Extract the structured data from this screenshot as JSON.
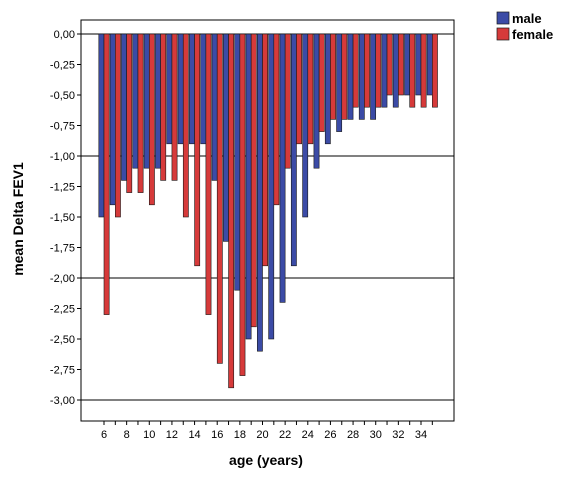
{
  "chart_data": {
    "type": "bar",
    "xlabel": "age (years)",
    "ylabel": "mean Delta FEV1",
    "ylim": [
      -3.25,
      0.08
    ],
    "y_ticks": [
      {
        "value": 0,
        "label": "0,00"
      },
      {
        "value": -0.25,
        "label": "-0,25"
      },
      {
        "value": -0.5,
        "label": "-0,50"
      },
      {
        "value": -0.75,
        "label": "-0,75"
      },
      {
        "value": -1.0,
        "label": "-1,00"
      },
      {
        "value": -1.25,
        "label": "-1,25"
      },
      {
        "value": -1.5,
        "label": "-1,50"
      },
      {
        "value": -1.75,
        "label": "-1,75"
      },
      {
        "value": -2.0,
        "label": "-2,00"
      },
      {
        "value": -2.25,
        "label": "-2,25"
      },
      {
        "value": -2.5,
        "label": "-2,50"
      },
      {
        "value": -2.75,
        "label": "-2,75"
      },
      {
        "value": -3.0,
        "label": "-3,00"
      }
    ],
    "reference_lines": [
      0,
      -1,
      -2,
      -3
    ],
    "x_tick_labels": [
      "6",
      "8",
      "10",
      "12",
      "14",
      "16",
      "18",
      "20",
      "22",
      "24",
      "26",
      "28",
      "30",
      "32",
      "34"
    ],
    "categories": [
      6,
      7,
      8,
      9,
      10,
      11,
      12,
      13,
      14,
      15,
      16,
      17,
      18,
      19,
      20,
      21,
      22,
      23,
      24,
      25,
      26,
      27,
      28,
      29,
      30,
      31,
      32,
      33,
      34,
      35
    ],
    "legend_position": "top-right",
    "series": [
      {
        "name": "male",
        "color": "#3b4ba6",
        "values": [
          -1.5,
          -1.4,
          -1.2,
          -1.1,
          -1.1,
          -1.1,
          -0.9,
          -0.9,
          -0.9,
          -0.9,
          -1.2,
          -1.7,
          -2.1,
          -2.5,
          -2.6,
          -2.5,
          -2.2,
          -1.9,
          -1.5,
          -1.1,
          -0.9,
          -0.8,
          -0.7,
          -0.7,
          -0.7,
          -0.6,
          -0.6,
          -0.5,
          -0.5,
          -0.5
        ]
      },
      {
        "name": "female",
        "color": "#d63a3a",
        "values": [
          -2.3,
          -1.5,
          -1.3,
          -1.3,
          -1.4,
          -1.2,
          -1.2,
          -1.5,
          -1.9,
          -2.3,
          -2.7,
          -2.9,
          -2.8,
          -2.4,
          -1.9,
          -1.4,
          -1.1,
          -0.9,
          -0.9,
          -0.8,
          -0.7,
          -0.7,
          -0.6,
          -0.6,
          -0.6,
          -0.5,
          -0.5,
          -0.6,
          -0.6,
          -0.6
        ]
      }
    ]
  }
}
